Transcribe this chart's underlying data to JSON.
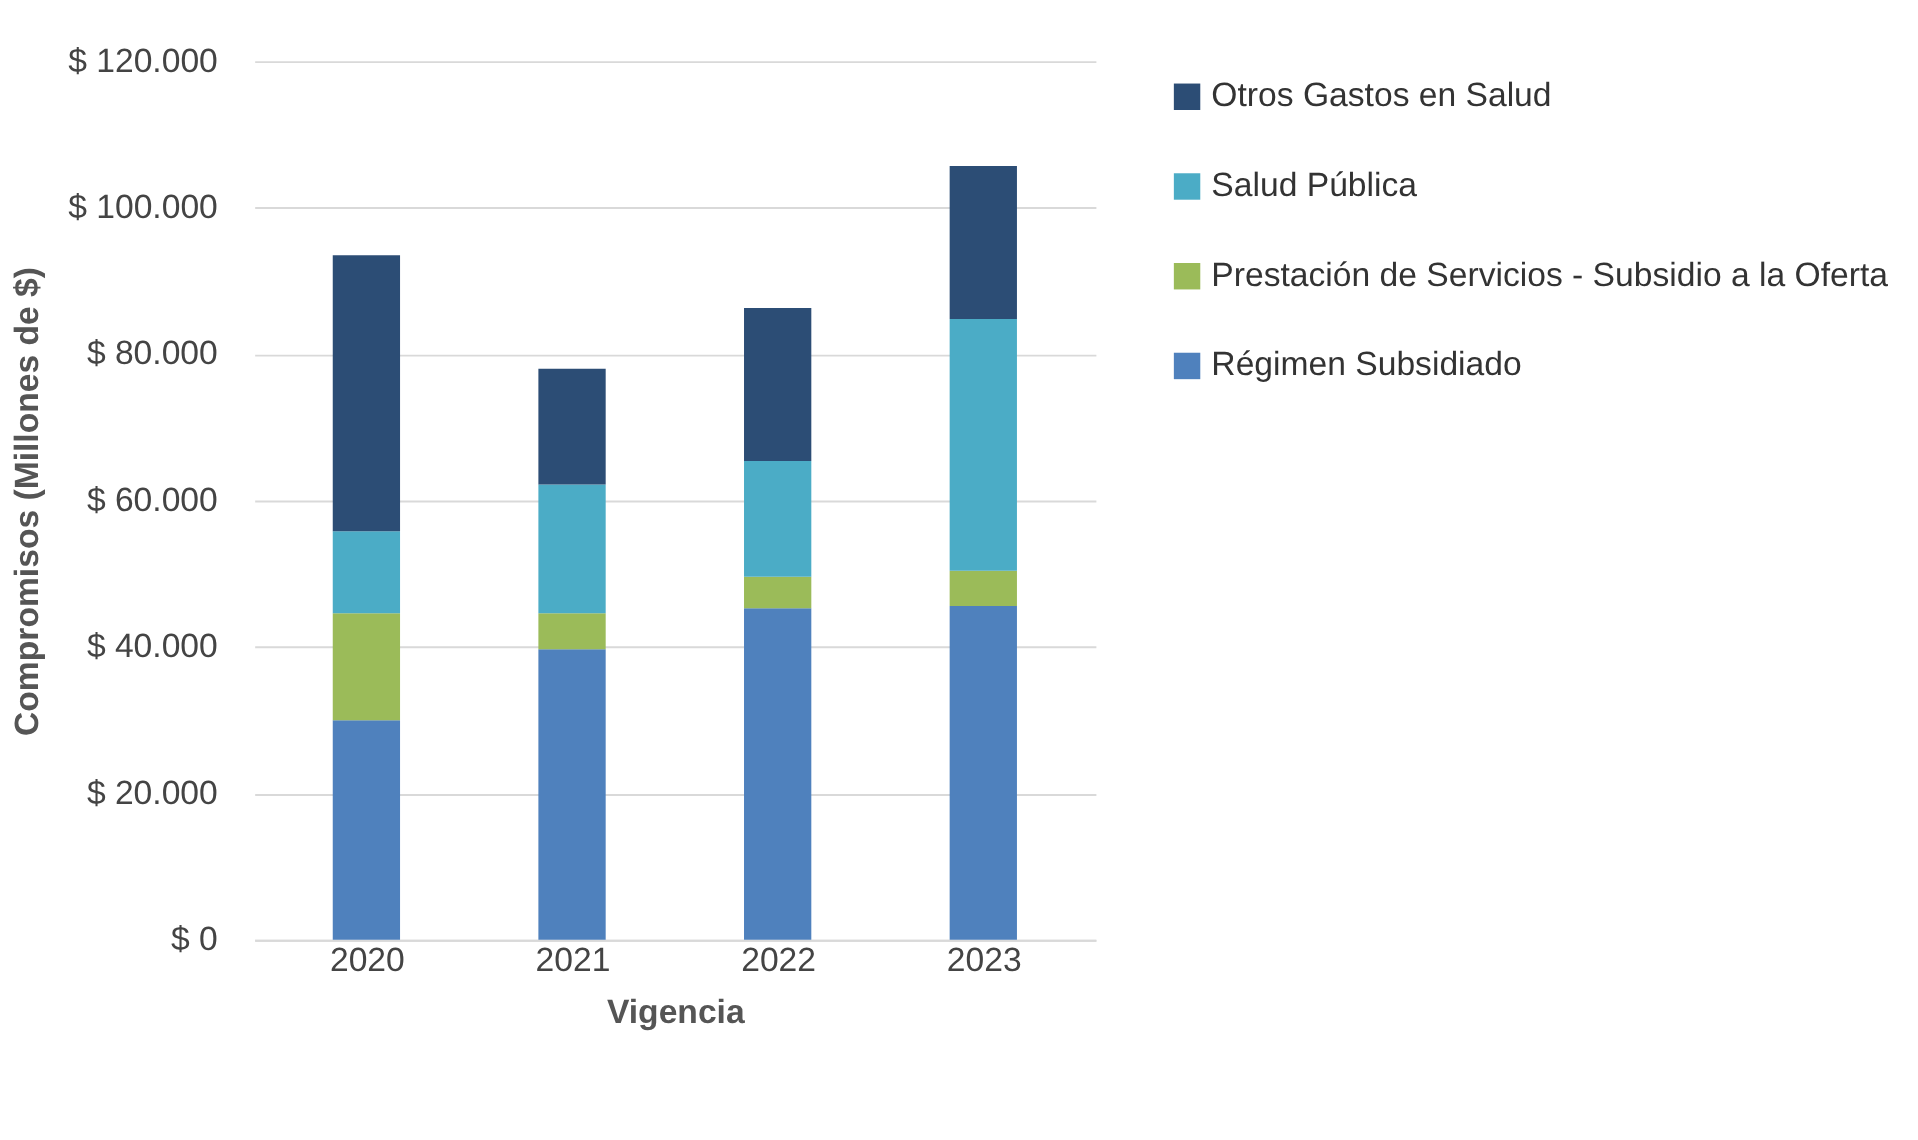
{
  "chart_data": {
    "type": "bar",
    "stacked": true,
    "xlabel": "Vigencia",
    "ylabel": "Compromisos (Millones de $)",
    "categories": [
      "2020",
      "2021",
      "2022",
      "2023"
    ],
    "series": [
      {
        "name": "Régimen Subsidiado",
        "color": "#4f81bd",
        "values": [
          30000,
          39700,
          45300,
          45600
        ]
      },
      {
        "name": "Prestación de Servicios - Subsidio a la Oferta",
        "color": "#9bbb59",
        "values": [
          14600,
          4900,
          4300,
          4800
        ]
      },
      {
        "name": "Salud Pública",
        "color": "#4bacc6",
        "values": [
          11200,
          17600,
          15800,
          34400
        ]
      },
      {
        "name": "Otros Gastos en Salud",
        "color": "#2c4d75",
        "values": [
          37700,
          15800,
          20900,
          20900
        ]
      }
    ],
    "ylim": [
      0,
      120000
    ],
    "yticks": [
      {
        "value": 0,
        "label": "$ 0"
      },
      {
        "value": 20000,
        "label": "$ 20.000"
      },
      {
        "value": 40000,
        "label": "$ 40.000"
      },
      {
        "value": 60000,
        "label": "$ 60.000"
      },
      {
        "value": 80000,
        "label": "$ 80.000"
      },
      {
        "value": 100000,
        "label": "$ 100.000"
      },
      {
        "value": 120000,
        "label": "$ 120.000"
      }
    ],
    "grid": "y",
    "legend": "right"
  }
}
